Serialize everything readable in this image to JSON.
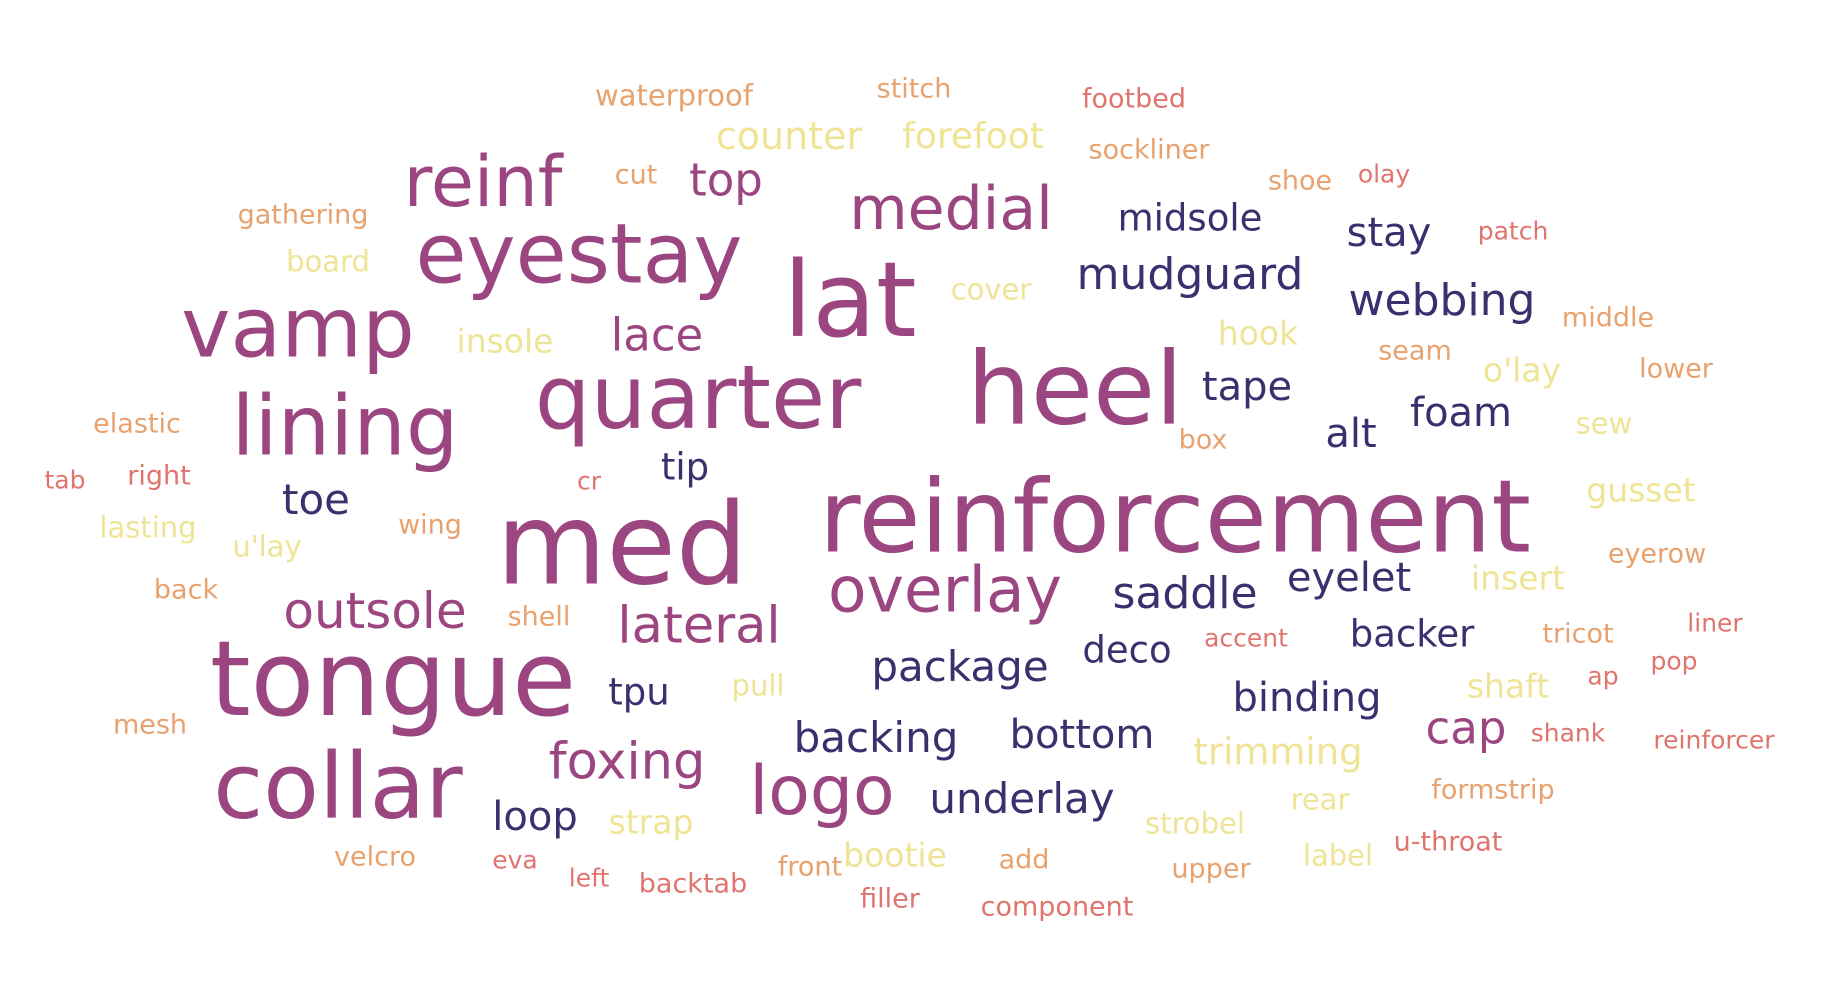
{
  "colors": {
    "tier1": "#9b4680",
    "tier2": "#3c2f6e",
    "tier3": "#efe496",
    "tier4": "#e8a26e",
    "tier5": "#e0746e"
  },
  "words": [
    {
      "text": "med",
      "tier": "tier1"
    },
    {
      "text": "reinforcement",
      "tier": "tier1"
    },
    {
      "text": "heel",
      "tier": "tier1"
    },
    {
      "text": "tongue",
      "tier": "tier1"
    },
    {
      "text": "quarter",
      "tier": "tier1"
    },
    {
      "text": "lat",
      "tier": "tier1"
    },
    {
      "text": "collar",
      "tier": "tier1"
    },
    {
      "text": "lining",
      "tier": "tier1"
    },
    {
      "text": "vamp",
      "tier": "tier1"
    },
    {
      "text": "eyestay",
      "tier": "tier1"
    },
    {
      "text": "reinf",
      "tier": "tier1"
    },
    {
      "text": "logo",
      "tier": "tier1"
    },
    {
      "text": "overlay",
      "tier": "tier1"
    },
    {
      "text": "medial",
      "tier": "tier1"
    },
    {
      "text": "outsole",
      "tier": "tier1"
    },
    {
      "text": "lateral",
      "tier": "tier1"
    },
    {
      "text": "foxing",
      "tier": "tier1"
    },
    {
      "text": "lace",
      "tier": "tier1"
    },
    {
      "text": "top",
      "tier": "tier1"
    },
    {
      "text": "cap",
      "tier": "tier1"
    },
    {
      "text": "package",
      "tier": "tier2"
    },
    {
      "text": "backing",
      "tier": "tier2"
    },
    {
      "text": "underlay",
      "tier": "tier2"
    },
    {
      "text": "saddle",
      "tier": "tier2"
    },
    {
      "text": "mudguard",
      "tier": "tier2"
    },
    {
      "text": "webbing",
      "tier": "tier2"
    },
    {
      "text": "bottom",
      "tier": "tier2"
    },
    {
      "text": "binding",
      "tier": "tier2"
    },
    {
      "text": "eyelet",
      "tier": "tier2"
    },
    {
      "text": "midsole",
      "tier": "tier2"
    },
    {
      "text": "stay",
      "tier": "tier2"
    },
    {
      "text": "tape",
      "tier": "tier2"
    },
    {
      "text": "foam",
      "tier": "tier2"
    },
    {
      "text": "alt",
      "tier": "tier2"
    },
    {
      "text": "toe",
      "tier": "tier2"
    },
    {
      "text": "loop",
      "tier": "tier2"
    },
    {
      "text": "deco",
      "tier": "tier2"
    },
    {
      "text": "backer",
      "tier": "tier2"
    },
    {
      "text": "tpu",
      "tier": "tier2"
    },
    {
      "text": "tip",
      "tier": "tier2"
    },
    {
      "text": "counter",
      "tier": "tier3"
    },
    {
      "text": "forefoot",
      "tier": "tier3"
    },
    {
      "text": "trimming",
      "tier": "tier3"
    },
    {
      "text": "hook",
      "tier": "tier3"
    },
    {
      "text": "o'lay",
      "tier": "tier3"
    },
    {
      "text": "gusset",
      "tier": "tier3"
    },
    {
      "text": "insert",
      "tier": "tier3"
    },
    {
      "text": "shaft",
      "tier": "tier3"
    },
    {
      "text": "insole",
      "tier": "tier3"
    },
    {
      "text": "cover",
      "tier": "tier3"
    },
    {
      "text": "board",
      "tier": "tier3"
    },
    {
      "text": "lasting",
      "tier": "tier3"
    },
    {
      "text": "u'lay",
      "tier": "tier3"
    },
    {
      "text": "pull",
      "tier": "tier3"
    },
    {
      "text": "strap",
      "tier": "tier3"
    },
    {
      "text": "bootie",
      "tier": "tier3"
    },
    {
      "text": "strobel",
      "tier": "tier3"
    },
    {
      "text": "rear",
      "tier": "tier3"
    },
    {
      "text": "label",
      "tier": "tier3"
    },
    {
      "text": "sew",
      "tier": "tier3"
    },
    {
      "text": "waterproof",
      "tier": "tier4"
    },
    {
      "text": "stitch",
      "tier": "tier4"
    },
    {
      "text": "sockliner",
      "tier": "tier4"
    },
    {
      "text": "cut",
      "tier": "tier4"
    },
    {
      "text": "shoe",
      "tier": "tier4"
    },
    {
      "text": "gathering",
      "tier": "tier4"
    },
    {
      "text": "elastic",
      "tier": "tier4"
    },
    {
      "text": "wing",
      "tier": "tier4"
    },
    {
      "text": "back",
      "tier": "tier4"
    },
    {
      "text": "shell",
      "tier": "tier4"
    },
    {
      "text": "mesh",
      "tier": "tier4"
    },
    {
      "text": "velcro",
      "tier": "tier4"
    },
    {
      "text": "front",
      "tier": "tier4"
    },
    {
      "text": "add",
      "tier": "tier4"
    },
    {
      "text": "upper",
      "tier": "tier4"
    },
    {
      "text": "box",
      "tier": "tier4"
    },
    {
      "text": "seam",
      "tier": "tier4"
    },
    {
      "text": "middle",
      "tier": "tier4"
    },
    {
      "text": "lower",
      "tier": "tier4"
    },
    {
      "text": "eyerow",
      "tier": "tier4"
    },
    {
      "text": "tricot",
      "tier": "tier4"
    },
    {
      "text": "formstrip",
      "tier": "tier4"
    },
    {
      "text": "footbed",
      "tier": "tier5"
    },
    {
      "text": "olay",
      "tier": "tier5"
    },
    {
      "text": "patch",
      "tier": "tier5"
    },
    {
      "text": "tab",
      "tier": "tier5"
    },
    {
      "text": "right",
      "tier": "tier5"
    },
    {
      "text": "cr",
      "tier": "tier5"
    },
    {
      "text": "accent",
      "tier": "tier5"
    },
    {
      "text": "liner",
      "tier": "tier5"
    },
    {
      "text": "pop",
      "tier": "tier5"
    },
    {
      "text": "ap",
      "tier": "tier5"
    },
    {
      "text": "shank",
      "tier": "tier5"
    },
    {
      "text": "reinforcer",
      "tier": "tier5"
    },
    {
      "text": "u-throat",
      "tier": "tier5"
    },
    {
      "text": "eva",
      "tier": "tier5"
    },
    {
      "text": "left",
      "tier": "tier5"
    },
    {
      "text": "backtab",
      "tier": "tier5"
    },
    {
      "text": "filler",
      "tier": "tier5"
    },
    {
      "text": "component",
      "tier": "tier5"
    }
  ]
}
